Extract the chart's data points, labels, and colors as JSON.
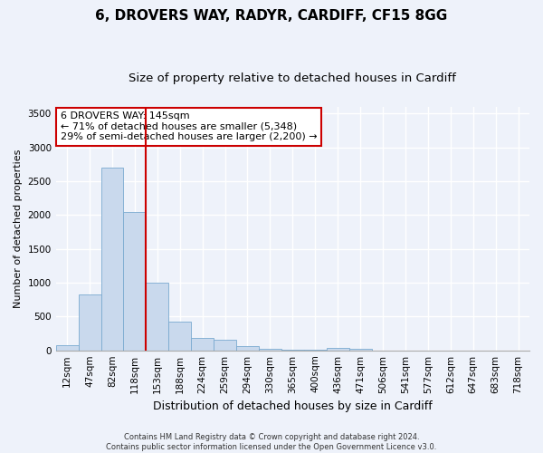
{
  "title1": "6, DROVERS WAY, RADYR, CARDIFF, CF15 8GG",
  "title2": "Size of property relative to detached houses in Cardiff",
  "xlabel": "Distribution of detached houses by size in Cardiff",
  "ylabel": "Number of detached properties",
  "categories": [
    "12sqm",
    "47sqm",
    "82sqm",
    "118sqm",
    "153sqm",
    "188sqm",
    "224sqm",
    "259sqm",
    "294sqm",
    "330sqm",
    "365sqm",
    "400sqm",
    "436sqm",
    "471sqm",
    "506sqm",
    "541sqm",
    "577sqm",
    "612sqm",
    "647sqm",
    "683sqm",
    "718sqm"
  ],
  "values": [
    75,
    820,
    2700,
    2050,
    1000,
    430,
    185,
    150,
    60,
    20,
    8,
    3,
    30,
    20,
    0,
    0,
    0,
    0,
    0,
    0,
    0
  ],
  "bar_color": "#c9d9ed",
  "bar_edge_color": "#7aaad0",
  "vline_position": 3.5,
  "vline_color": "#cc0000",
  "annotation_text": "6 DROVERS WAY: 145sqm\n← 71% of detached houses are smaller (5,348)\n29% of semi-detached houses are larger (2,200) →",
  "annotation_box_color": "white",
  "annotation_box_edge": "#cc0000",
  "ylim": [
    0,
    3600
  ],
  "yticks": [
    0,
    500,
    1000,
    1500,
    2000,
    2500,
    3000,
    3500
  ],
  "footer": "Contains HM Land Registry data © Crown copyright and database right 2024.\nContains public sector information licensed under the Open Government Licence v3.0.",
  "bg_color": "#eef2fa",
  "grid_color": "#ffffff",
  "title1_fontsize": 11,
  "title2_fontsize": 9.5,
  "tick_fontsize": 7.5,
  "ylabel_fontsize": 8,
  "xlabel_fontsize": 9,
  "annotation_fontsize": 8,
  "footer_fontsize": 6
}
